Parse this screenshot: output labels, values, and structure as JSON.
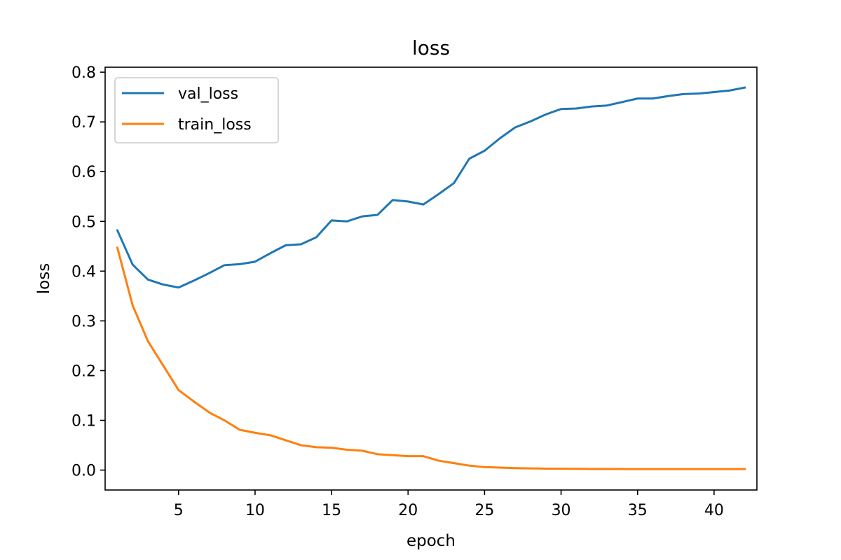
{
  "chart_data": {
    "type": "line",
    "title": "loss",
    "xlabel": "epoch",
    "ylabel": "loss",
    "xlim": [
      0.2,
      42.8
    ],
    "ylim": [
      -0.04,
      0.81
    ],
    "xticks": [
      5,
      10,
      15,
      20,
      25,
      30,
      35,
      40
    ],
    "xtick_labels": [
      "5",
      "10",
      "15",
      "20",
      "25",
      "30",
      "35",
      "40"
    ],
    "yticks": [
      0.0,
      0.1,
      0.2,
      0.3,
      0.4,
      0.5,
      0.6,
      0.7,
      0.8
    ],
    "ytick_labels": [
      "0.0",
      "0.1",
      "0.2",
      "0.3",
      "0.4",
      "0.5",
      "0.6",
      "0.7",
      "0.8"
    ],
    "grid": false,
    "legend_position": "top-left",
    "x": [
      1,
      2,
      3,
      4,
      5,
      6,
      7,
      8,
      9,
      10,
      11,
      12,
      13,
      14,
      15,
      16,
      17,
      18,
      19,
      20,
      21,
      22,
      23,
      24,
      25,
      26,
      27,
      28,
      29,
      30,
      31,
      32,
      33,
      34,
      35,
      36,
      37,
      38,
      39,
      40,
      41,
      42
    ],
    "series": [
      {
        "name": "val_loss",
        "color": "#1f77b4",
        "values": [
          0.482,
          0.413,
          0.383,
          0.373,
          0.367,
          0.381,
          0.396,
          0.412,
          0.414,
          0.419,
          0.436,
          0.452,
          0.454,
          0.468,
          0.502,
          0.5,
          0.51,
          0.513,
          0.543,
          0.54,
          0.534,
          0.555,
          0.577,
          0.626,
          0.642,
          0.667,
          0.689,
          0.701,
          0.715,
          0.726,
          0.727,
          0.731,
          0.733,
          0.74,
          0.747,
          0.747,
          0.752,
          0.756,
          0.757,
          0.76,
          0.763,
          0.769
        ]
      },
      {
        "name": "train_loss",
        "color": "#ff7f0e",
        "values": [
          0.447,
          0.331,
          0.259,
          0.21,
          0.161,
          0.138,
          0.116,
          0.1,
          0.081,
          0.075,
          0.07,
          0.06,
          0.05,
          0.046,
          0.045,
          0.041,
          0.039,
          0.032,
          0.03,
          0.028,
          0.028,
          0.019,
          0.014,
          0.009,
          0.006,
          0.005,
          0.004,
          0.0035,
          0.003,
          0.0027,
          0.0025,
          0.0023,
          0.0022,
          0.0021,
          0.002,
          0.002,
          0.002,
          0.002,
          0.002,
          0.002,
          0.002,
          0.002
        ]
      }
    ]
  }
}
